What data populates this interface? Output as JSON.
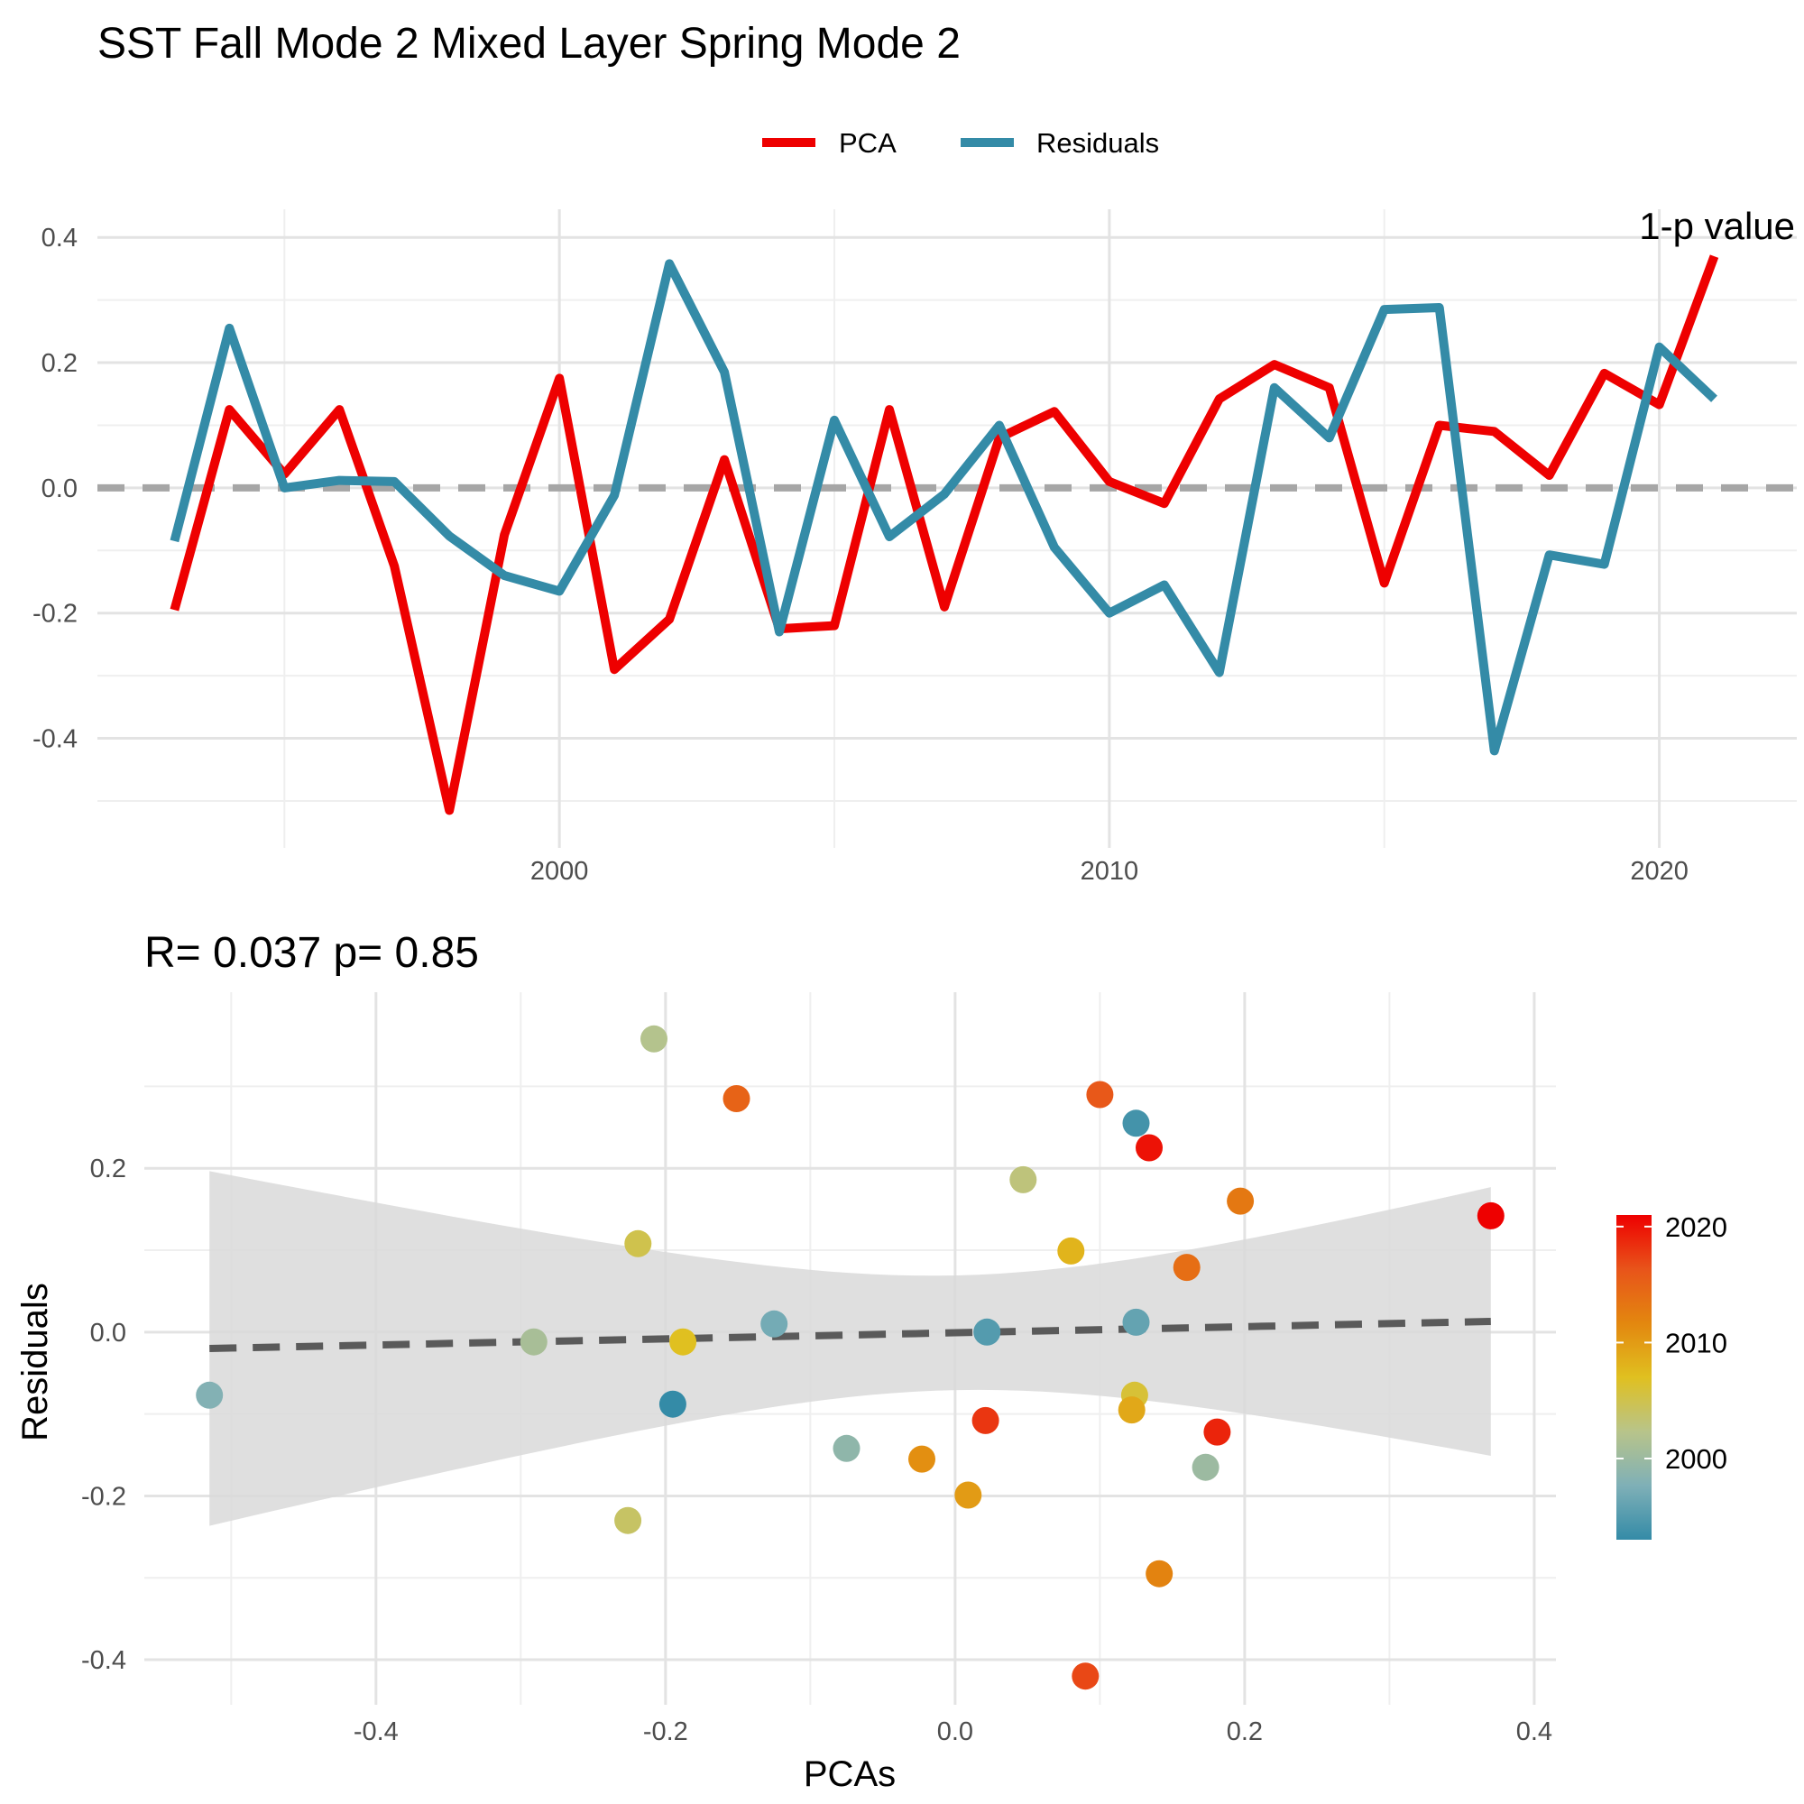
{
  "chart_data": [
    {
      "type": "line",
      "title": "SST Fall Mode 2 Mixed Layer Spring Mode 2",
      "legend": {
        "position": "top",
        "entries": [
          "PCA",
          "Residuals"
        ]
      },
      "x_ticks": [
        "2000",
        "2010",
        "2020"
      ],
      "y_ticks": [
        "-0.4",
        "-0.2",
        "0.0",
        "0.2",
        "0.4"
      ],
      "xlim": [
        1991.6,
        2022.5
      ],
      "ylim": [
        -0.575,
        0.445
      ],
      "reference_line": {
        "y": 0,
        "style": "dashed",
        "color": "#a6a6a6"
      },
      "x": [
        1993,
        1994,
        1995,
        1996,
        1997,
        1998,
        1999,
        2000,
        2001,
        2002,
        2003,
        2004,
        2005,
        2006,
        2007,
        2008,
        2009,
        2010,
        2011,
        2012,
        2013,
        2014,
        2015,
        2016,
        2017,
        2018,
        2019,
        2020,
        2021
      ],
      "series": [
        {
          "name": "PCA",
          "color": "#ee0000",
          "values": [
            -0.195,
            0.125,
            0.022,
            0.125,
            -0.125,
            -0.515,
            -0.075,
            0.175,
            -0.29,
            -0.21,
            0.045,
            -0.225,
            -0.22,
            0.125,
            -0.19,
            0.08,
            0.122,
            0.01,
            -0.025,
            0.142,
            0.197,
            0.16,
            -0.152,
            0.1,
            0.09,
            0.02,
            0.183,
            0.133,
            0.37
          ]
        },
        {
          "name": "Residuals",
          "color": "#348ba7",
          "values": [
            -0.085,
            0.255,
            0.0,
            0.012,
            0.01,
            -0.077,
            -0.14,
            -0.165,
            -0.012,
            0.358,
            0.185,
            -0.23,
            0.108,
            -0.078,
            -0.01,
            0.1,
            -0.095,
            -0.2,
            -0.155,
            -0.295,
            0.16,
            0.08,
            0.285,
            0.288,
            -0.42,
            -0.107,
            -0.122,
            0.225,
            0.142
          ]
        }
      ],
      "clipped_corner_text": "1-p value"
    },
    {
      "type": "scatter",
      "subtitle": "R= 0.037  p= 0.85",
      "xlabel": "PCAs",
      "ylabel": "Residuals",
      "x_ticks": [
        "-0.4",
        "-0.2",
        "0.0",
        "0.2",
        "0.4"
      ],
      "y_ticks": [
        "-0.4",
        "-0.2",
        "0.0",
        "0.2"
      ],
      "xlim": [
        -0.56,
        0.415
      ],
      "ylim": [
        -0.455,
        0.415
      ],
      "regression": {
        "x": [
          -0.515,
          0.37
        ],
        "y": [
          -0.02,
          0.013
        ],
        "ci_lower": [
          -0.235,
          -0.15
        ],
        "ci_upper": [
          0.198,
          0.178
        ],
        "style": "dashed"
      },
      "colorbar": {
        "ticks": [
          "2000",
          "2010",
          "2020"
        ],
        "range": [
          1993,
          2021
        ],
        "colors": [
          "#348ba7",
          "#7fb0b7",
          "#b8c48a",
          "#e0c020",
          "#e3870f",
          "#e8541a",
          "#ee0000"
        ]
      },
      "points": [
        {
          "x": -0.195,
          "y": -0.088,
          "year": 1993
        },
        {
          "x": 0.125,
          "y": 0.255,
          "year": 1994
        },
        {
          "x": 0.022,
          "y": 0.0,
          "year": 1995
        },
        {
          "x": 0.125,
          "y": 0.012,
          "year": 1996
        },
        {
          "x": -0.125,
          "y": 0.01,
          "year": 1997
        },
        {
          "x": -0.515,
          "y": -0.077,
          "year": 1998
        },
        {
          "x": -0.075,
          "y": -0.142,
          "year": 1999
        },
        {
          "x": 0.173,
          "y": -0.165,
          "year": 2000
        },
        {
          "x": -0.291,
          "y": -0.012,
          "year": 2001
        },
        {
          "x": -0.208,
          "y": 0.358,
          "year": 2002
        },
        {
          "x": 0.047,
          "y": 0.186,
          "year": 2003
        },
        {
          "x": -0.226,
          "y": -0.23,
          "year": 2004
        },
        {
          "x": -0.219,
          "y": 0.108,
          "year": 2005
        },
        {
          "x": 0.124,
          "y": -0.077,
          "year": 2006
        },
        {
          "x": -0.188,
          "y": -0.012,
          "year": 2007
        },
        {
          "x": 0.08,
          "y": 0.099,
          "year": 2008
        },
        {
          "x": 0.122,
          "y": -0.095,
          "year": 2009
        },
        {
          "x": 0.009,
          "y": -0.199,
          "year": 2010
        },
        {
          "x": -0.023,
          "y": -0.155,
          "year": 2011
        },
        {
          "x": 0.141,
          "y": -0.295,
          "year": 2012
        },
        {
          "x": 0.197,
          "y": 0.16,
          "year": 2013
        },
        {
          "x": 0.16,
          "y": 0.079,
          "year": 2014
        },
        {
          "x": -0.151,
          "y": 0.285,
          "year": 2015
        },
        {
          "x": 0.1,
          "y": 0.29,
          "year": 2016
        },
        {
          "x": 0.09,
          "y": -0.42,
          "year": 2017
        },
        {
          "x": 0.021,
          "y": -0.108,
          "year": 2018
        },
        {
          "x": 0.181,
          "y": -0.122,
          "year": 2019
        },
        {
          "x": 0.134,
          "y": 0.225,
          "year": 2020
        },
        {
          "x": 0.37,
          "y": 0.142,
          "year": 2021
        }
      ]
    }
  ]
}
